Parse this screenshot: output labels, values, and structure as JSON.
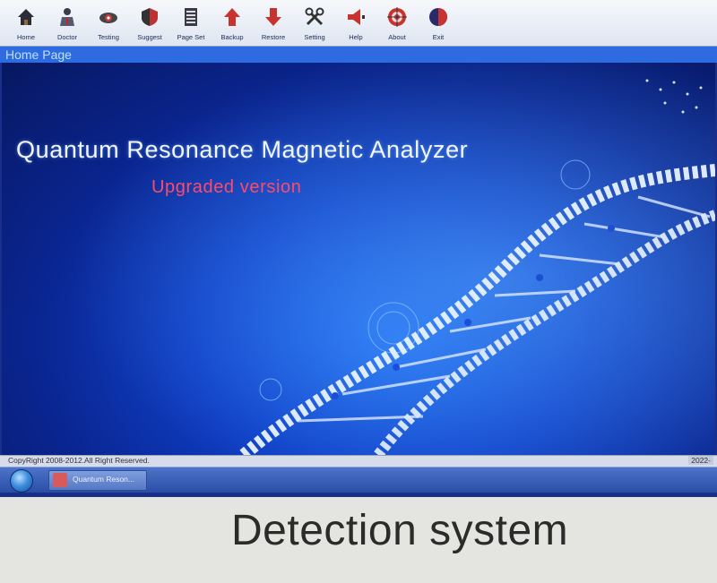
{
  "toolbar": {
    "items": [
      {
        "label": "Home",
        "icon": "home-icon"
      },
      {
        "label": "Doctor",
        "icon": "doctor-icon"
      },
      {
        "label": "Testing",
        "icon": "testing-icon"
      },
      {
        "label": "Suggest",
        "icon": "suggest-icon"
      },
      {
        "label": "Page Set",
        "icon": "page-set-icon"
      },
      {
        "label": "Backup",
        "icon": "backup-icon"
      },
      {
        "label": "Restore",
        "icon": "restore-icon"
      },
      {
        "label": "Setting",
        "icon": "setting-icon"
      },
      {
        "label": "Help",
        "icon": "help-icon"
      },
      {
        "label": "About",
        "icon": "about-icon"
      },
      {
        "label": "Exit",
        "icon": "exit-icon"
      }
    ]
  },
  "page": {
    "title": "Home Page"
  },
  "splash": {
    "title": "Quantum Resonance Magnetic Analyzer",
    "subtitle": "Upgraded version"
  },
  "status": {
    "copyright": "CopyRight 2008-2012.All Right Reserved.",
    "clock": "2022-"
  },
  "taskbar": {
    "app_label": "Quantum Reson..."
  },
  "caption": "Detection system",
  "colors": {
    "toolbar_bg": "#e6ebf3",
    "pagebar_bg": "#2e6be0",
    "splash_bg": "#0f40c8",
    "title_text": "#f2f6ff",
    "subtitle_text": "#ff4a6a"
  }
}
